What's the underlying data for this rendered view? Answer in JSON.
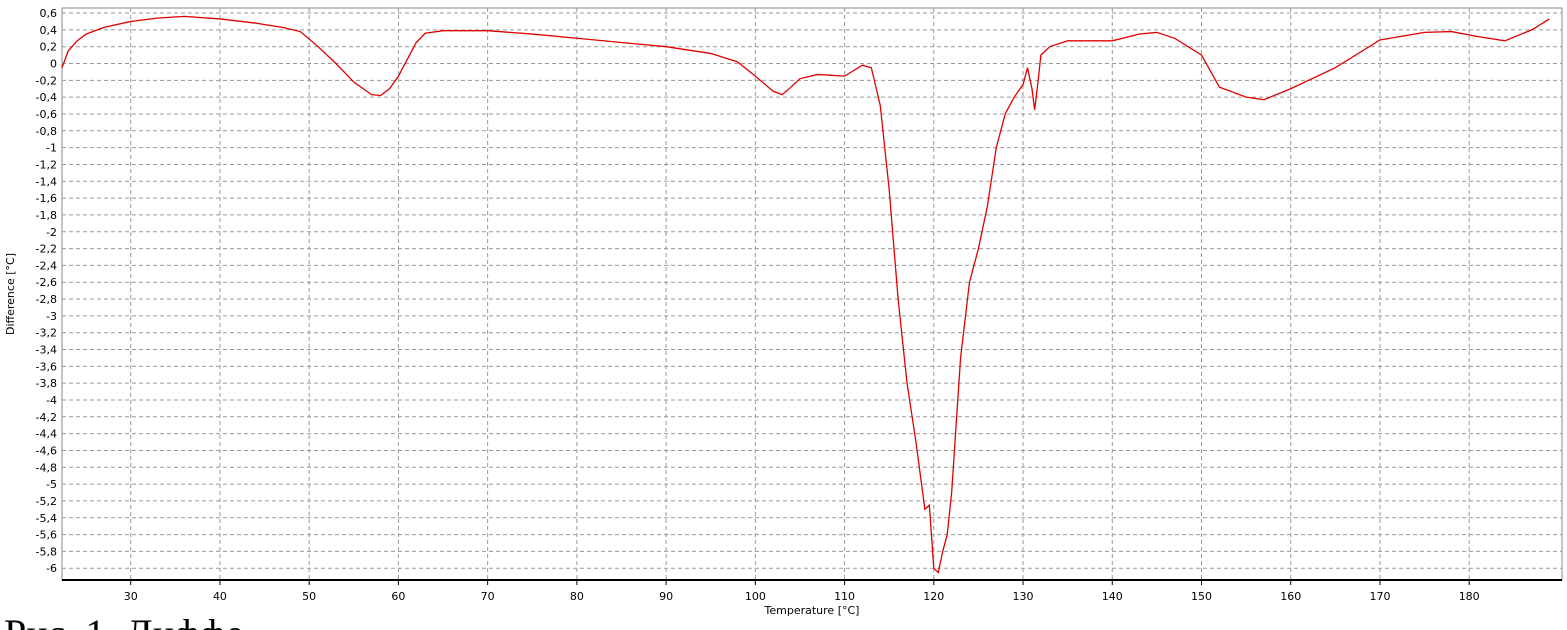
{
  "chart_data": {
    "type": "line",
    "x_label": "Temperature [°C]",
    "y_label": "Difference [°C]",
    "caption": "Рис. 1. Диффе",
    "grid": true,
    "xlim": [
      22.3,
      190.4
    ],
    "ylim": [
      -6.14,
      0.66
    ],
    "xticks": [
      30,
      40,
      50,
      60,
      70,
      80,
      90,
      100,
      110,
      120,
      130,
      140,
      150,
      160,
      170,
      180
    ],
    "yticks": [
      {
        "value": 0.6,
        "label": "0,6"
      },
      {
        "value": 0.4,
        "label": "0,4"
      },
      {
        "value": 0.2,
        "label": "0,2"
      },
      0,
      {
        "value": -0.2,
        "label": "-0,2"
      },
      {
        "value": -0.4,
        "label": "-0,4"
      },
      {
        "value": -0.6,
        "label": "-0,6"
      },
      {
        "value": -0.8,
        "label": "-0,8"
      },
      -1,
      {
        "value": -1.2,
        "label": "-1,2"
      },
      {
        "value": -1.4,
        "label": "-1,4"
      },
      {
        "value": -1.6,
        "label": "-1,6"
      },
      {
        "value": -1.8,
        "label": "-1,8"
      },
      -2,
      {
        "value": -2.2,
        "label": "-2,2"
      },
      {
        "value": -2.4,
        "label": "-2,4"
      },
      {
        "value": -2.6,
        "label": "-2,6"
      },
      {
        "value": -2.8,
        "label": "-2,8"
      },
      -3,
      {
        "value": -3.2,
        "label": "-3,2"
      },
      {
        "value": -3.4,
        "label": "-3,4"
      },
      {
        "value": -3.6,
        "label": "-3,6"
      },
      {
        "value": -3.8,
        "label": "-3,8"
      },
      -4,
      {
        "value": -4.2,
        "label": "-4,2"
      },
      {
        "value": -4.4,
        "label": "-4,4"
      },
      {
        "value": -4.6,
        "label": "-4,6"
      },
      {
        "value": -4.8,
        "label": "-4,8"
      },
      -5,
      {
        "value": -5.2,
        "label": "-5,2"
      },
      {
        "value": -5.4,
        "label": "-5,4"
      },
      {
        "value": -5.6,
        "label": "-5,6"
      },
      {
        "value": -5.8,
        "label": "-5,8"
      },
      -6
    ],
    "x": [
      22.3,
      23,
      24,
      25,
      27,
      30,
      33,
      36,
      40,
      44,
      47,
      49,
      51,
      53,
      55,
      57,
      58,
      59,
      60,
      61,
      62,
      63,
      65,
      70,
      75,
      80,
      85,
      90,
      95,
      98,
      100,
      102,
      103,
      104,
      105,
      107,
      110,
      112,
      113,
      114,
      115,
      116,
      117,
      118,
      118.5,
      119,
      119.5,
      120,
      120.5,
      121,
      121.5,
      122,
      122.5,
      123,
      124,
      125,
      126,
      127,
      128,
      129,
      130,
      130.5,
      131,
      131.3,
      131.7,
      132,
      133,
      135,
      138,
      140,
      143,
      145,
      147,
      150,
      152,
      155,
      157,
      160,
      165,
      170,
      175,
      178,
      181,
      184,
      187,
      189
    ],
    "series": [
      {
        "color": "#e00000",
        "values": [
          -0.05,
          0.15,
          0.27,
          0.35,
          0.43,
          0.5,
          0.54,
          0.56,
          0.53,
          0.48,
          0.43,
          0.38,
          0.2,
          0,
          -0.22,
          -0.37,
          -0.38,
          -0.3,
          -0.15,
          0.05,
          0.25,
          0.36,
          0.39,
          0.39,
          0.35,
          0.3,
          0.25,
          0.2,
          0.12,
          0.02,
          -0.15,
          -0.33,
          -0.37,
          -0.28,
          -0.18,
          -0.13,
          -0.15,
          -0.02,
          -0.05,
          -0.5,
          -1.5,
          -2.8,
          -3.8,
          -4.5,
          -4.9,
          -5.3,
          -5.25,
          -6,
          -6.05,
          -5.8,
          -5.6,
          -5.1,
          -4.3,
          -3.5,
          -2.6,
          -2.2,
          -1.7,
          -1,
          -0.6,
          -0.4,
          -0.25,
          -0.05,
          -0.3,
          -0.55,
          -0.2,
          0.1,
          0.2,
          0.27,
          0.27,
          0.27,
          0.35,
          0.37,
          0.3,
          0.1,
          -0.28,
          -0.4,
          -0.43,
          -0.3,
          -0.05,
          0.28,
          0.37,
          0.38,
          0.32,
          0.27,
          0.4,
          0.53
        ]
      }
    ]
  }
}
